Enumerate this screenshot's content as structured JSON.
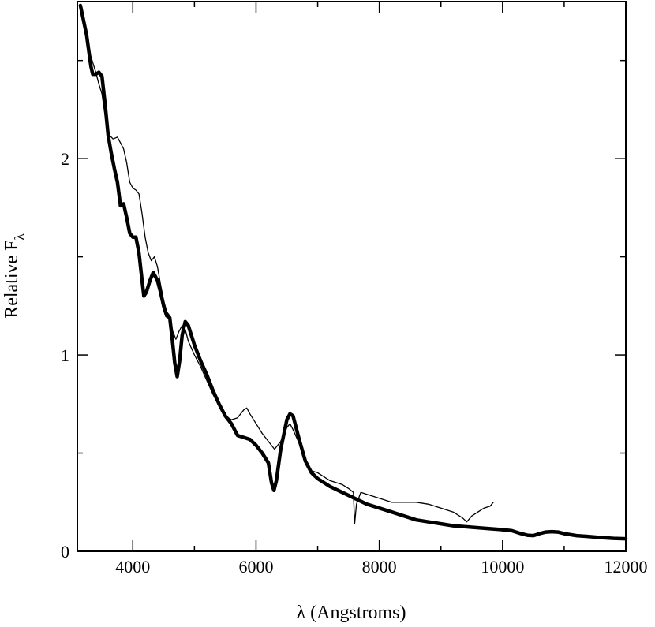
{
  "chart_data": {
    "type": "line",
    "title": "",
    "xlabel": "λ (Angstroms)",
    "ylabel_main": "Relative F",
    "ylabel_sub": "λ",
    "xlim": [
      3100,
      12000
    ],
    "ylim": [
      0,
      2.8
    ],
    "x_ticks": [
      4000,
      6000,
      8000,
      10000,
      12000
    ],
    "y_ticks": [
      0,
      1,
      2
    ],
    "x_tick_labels": [
      "4000",
      "6000",
      "8000",
      "10000",
      "12000"
    ],
    "y_tick_labels": [
      "0",
      "1",
      "2"
    ],
    "grid": false,
    "legend": false,
    "series": [
      {
        "style": "thin",
        "color": "#000000",
        "points": [
          [
            3150,
            2.78
          ],
          [
            3250,
            2.64
          ],
          [
            3320,
            2.52
          ],
          [
            3400,
            2.44
          ],
          [
            3450,
            2.38
          ],
          [
            3500,
            2.33
          ],
          [
            3550,
            2.22
          ],
          [
            3580,
            2.14
          ],
          [
            3620,
            2.12
          ],
          [
            3680,
            2.1
          ],
          [
            3750,
            2.11
          ],
          [
            3800,
            2.08
          ],
          [
            3850,
            2.05
          ],
          [
            3900,
            1.98
          ],
          [
            3950,
            1.88
          ],
          [
            4000,
            1.85
          ],
          [
            4050,
            1.84
          ],
          [
            4100,
            1.82
          ],
          [
            4150,
            1.72
          ],
          [
            4200,
            1.6
          ],
          [
            4250,
            1.52
          ],
          [
            4300,
            1.48
          ],
          [
            4350,
            1.5
          ],
          [
            4400,
            1.45
          ],
          [
            4450,
            1.36
          ],
          [
            4500,
            1.28
          ],
          [
            4550,
            1.22
          ],
          [
            4600,
            1.2
          ],
          [
            4650,
            1.12
          ],
          [
            4700,
            1.08
          ],
          [
            4750,
            1.12
          ],
          [
            4800,
            1.15
          ],
          [
            4850,
            1.13
          ],
          [
            4900,
            1.07
          ],
          [
            5000,
            1.0
          ],
          [
            5100,
            0.94
          ],
          [
            5200,
            0.87
          ],
          [
            5300,
            0.8
          ],
          [
            5400,
            0.74
          ],
          [
            5500,
            0.69
          ],
          [
            5600,
            0.67
          ],
          [
            5700,
            0.68
          ],
          [
            5800,
            0.72
          ],
          [
            5850,
            0.73
          ],
          [
            5900,
            0.7
          ],
          [
            6000,
            0.65
          ],
          [
            6100,
            0.6
          ],
          [
            6200,
            0.56
          ],
          [
            6300,
            0.52
          ],
          [
            6400,
            0.56
          ],
          [
            6500,
            0.63
          ],
          [
            6550,
            0.65
          ],
          [
            6600,
            0.62
          ],
          [
            6700,
            0.55
          ],
          [
            6800,
            0.46
          ],
          [
            6900,
            0.41
          ],
          [
            7000,
            0.4
          ],
          [
            7100,
            0.38
          ],
          [
            7200,
            0.36
          ],
          [
            7300,
            0.35
          ],
          [
            7400,
            0.34
          ],
          [
            7500,
            0.32
          ],
          [
            7580,
            0.3
          ],
          [
            7600,
            0.14
          ],
          [
            7630,
            0.24
          ],
          [
            7700,
            0.3
          ],
          [
            7800,
            0.29
          ],
          [
            7900,
            0.28
          ],
          [
            8000,
            0.27
          ],
          [
            8100,
            0.26
          ],
          [
            8200,
            0.25
          ],
          [
            8400,
            0.25
          ],
          [
            8600,
            0.25
          ],
          [
            8800,
            0.24
          ],
          [
            9000,
            0.22
          ],
          [
            9200,
            0.2
          ],
          [
            9350,
            0.17
          ],
          [
            9420,
            0.15
          ],
          [
            9500,
            0.18
          ],
          [
            9600,
            0.2
          ],
          [
            9700,
            0.22
          ],
          [
            9800,
            0.23
          ],
          [
            9850,
            0.25
          ]
        ]
      },
      {
        "style": "thick",
        "color": "#000000",
        "points": [
          [
            3150,
            2.78
          ],
          [
            3250,
            2.63
          ],
          [
            3320,
            2.47
          ],
          [
            3350,
            2.43
          ],
          [
            3400,
            2.43
          ],
          [
            3450,
            2.44
          ],
          [
            3500,
            2.42
          ],
          [
            3550,
            2.28
          ],
          [
            3600,
            2.12
          ],
          [
            3650,
            2.03
          ],
          [
            3700,
            1.95
          ],
          [
            3750,
            1.88
          ],
          [
            3800,
            1.76
          ],
          [
            3850,
            1.77
          ],
          [
            3900,
            1.7
          ],
          [
            3950,
            1.62
          ],
          [
            4000,
            1.6
          ],
          [
            4050,
            1.6
          ],
          [
            4100,
            1.52
          ],
          [
            4150,
            1.38
          ],
          [
            4180,
            1.3
          ],
          [
            4220,
            1.32
          ],
          [
            4280,
            1.38
          ],
          [
            4330,
            1.42
          ],
          [
            4400,
            1.38
          ],
          [
            4450,
            1.32
          ],
          [
            4500,
            1.25
          ],
          [
            4550,
            1.2
          ],
          [
            4600,
            1.19
          ],
          [
            4640,
            1.08
          ],
          [
            4680,
            0.96
          ],
          [
            4720,
            0.89
          ],
          [
            4760,
            0.97
          ],
          [
            4800,
            1.1
          ],
          [
            4850,
            1.17
          ],
          [
            4900,
            1.15
          ],
          [
            5000,
            1.05
          ],
          [
            5100,
            0.97
          ],
          [
            5200,
            0.9
          ],
          [
            5300,
            0.82
          ],
          [
            5400,
            0.75
          ],
          [
            5500,
            0.69
          ],
          [
            5600,
            0.65
          ],
          [
            5700,
            0.59
          ],
          [
            5800,
            0.58
          ],
          [
            5900,
            0.57
          ],
          [
            6000,
            0.54
          ],
          [
            6100,
            0.5
          ],
          [
            6200,
            0.45
          ],
          [
            6250,
            0.35
          ],
          [
            6290,
            0.31
          ],
          [
            6330,
            0.36
          ],
          [
            6400,
            0.52
          ],
          [
            6500,
            0.67
          ],
          [
            6550,
            0.7
          ],
          [
            6600,
            0.69
          ],
          [
            6700,
            0.57
          ],
          [
            6800,
            0.46
          ],
          [
            6900,
            0.4
          ],
          [
            7000,
            0.37
          ],
          [
            7200,
            0.33
          ],
          [
            7400,
            0.3
          ],
          [
            7600,
            0.27
          ],
          [
            7800,
            0.24
          ],
          [
            8000,
            0.22
          ],
          [
            8200,
            0.2
          ],
          [
            8400,
            0.18
          ],
          [
            8600,
            0.16
          ],
          [
            8800,
            0.15
          ],
          [
            9000,
            0.14
          ],
          [
            9200,
            0.13
          ],
          [
            9400,
            0.125
          ],
          [
            9600,
            0.12
          ],
          [
            9800,
            0.115
          ],
          [
            10000,
            0.11
          ],
          [
            10150,
            0.105
          ],
          [
            10300,
            0.09
          ],
          [
            10400,
            0.082
          ],
          [
            10500,
            0.08
          ],
          [
            10600,
            0.09
          ],
          [
            10700,
            0.098
          ],
          [
            10800,
            0.1
          ],
          [
            10900,
            0.098
          ],
          [
            11000,
            0.09
          ],
          [
            11200,
            0.08
          ],
          [
            11400,
            0.075
          ],
          [
            11600,
            0.07
          ],
          [
            11800,
            0.066
          ],
          [
            12000,
            0.064
          ]
        ]
      }
    ]
  }
}
